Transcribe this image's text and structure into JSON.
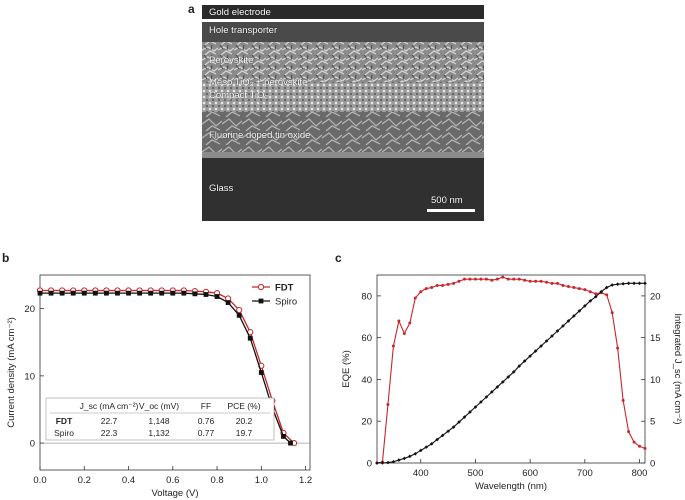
{
  "panels": {
    "a": "a",
    "b": "b",
    "c": "c"
  },
  "sem": {
    "layers": [
      "Gold electrode",
      "Hole transporter",
      "Perovskite",
      "Meso TiO₂ + perovskite",
      "Compact TiO₂",
      "Fluorine doped tin oxide",
      "Glass"
    ],
    "scale_bar": "500 nm"
  },
  "chart_data": [
    {
      "type": "line",
      "panel": "b",
      "xlabel": "Voltage (V)",
      "ylabel": "Current density (mA cm⁻²)",
      "xlim": [
        0.0,
        1.22
      ],
      "ylim": [
        -4,
        25
      ],
      "xticks": [
        "0.0",
        "0.2",
        "0.4",
        "0.6",
        "0.8",
        "1.0",
        "1.2"
      ],
      "yticks": [
        "0",
        "10",
        "20"
      ],
      "legend": "top-right",
      "series": [
        {
          "name": "FDT",
          "color": "#c8262c",
          "marker": "open-circle",
          "x": [
            0.0,
            0.05,
            0.1,
            0.15,
            0.2,
            0.25,
            0.3,
            0.35,
            0.4,
            0.45,
            0.5,
            0.55,
            0.6,
            0.65,
            0.7,
            0.75,
            0.8,
            0.85,
            0.9,
            0.95,
            1.0,
            1.05,
            1.1,
            1.148
          ],
          "y": [
            22.7,
            22.7,
            22.7,
            22.7,
            22.7,
            22.7,
            22.7,
            22.7,
            22.7,
            22.7,
            22.7,
            22.7,
            22.7,
            22.7,
            22.6,
            22.5,
            22.3,
            21.5,
            19.8,
            16.5,
            11.5,
            6.3,
            1.5,
            0
          ]
        },
        {
          "name": "Spiro",
          "color": "#111111",
          "marker": "filled-square",
          "x": [
            0.0,
            0.05,
            0.1,
            0.15,
            0.2,
            0.25,
            0.3,
            0.35,
            0.4,
            0.45,
            0.5,
            0.55,
            0.6,
            0.65,
            0.7,
            0.75,
            0.8,
            0.85,
            0.9,
            0.95,
            1.0,
            1.05,
            1.1,
            1.132
          ],
          "y": [
            22.3,
            22.3,
            22.3,
            22.3,
            22.3,
            22.3,
            22.3,
            22.3,
            22.3,
            22.3,
            22.3,
            22.3,
            22.3,
            22.3,
            22.2,
            22.1,
            21.8,
            20.9,
            19.0,
            15.6,
            10.5,
            5.2,
            1.0,
            0
          ]
        }
      ],
      "table": {
        "header": [
          "",
          "J_sc (mA cm⁻²)",
          "V_oc (mV)",
          "FF",
          "PCE (%)"
        ],
        "rows": [
          [
            "FDT",
            "22.7",
            "1,148",
            "0.76",
            "20.2"
          ],
          [
            "Spiro",
            "22.3",
            "1,132",
            "0.77",
            "19.7"
          ]
        ]
      }
    },
    {
      "type": "line",
      "panel": "c",
      "xlabel": "Wavelength (nm)",
      "ylabel": "EQE (%)",
      "y2label": "Integrated J_sc (mA cm⁻²)",
      "xlim": [
        320,
        810
      ],
      "ylim": [
        0,
        90
      ],
      "y2lim": [
        0,
        22.5
      ],
      "xticks": [
        "400",
        "500",
        "600",
        "700",
        "800"
      ],
      "yticks": [
        "0",
        "20",
        "40",
        "60",
        "80"
      ],
      "y2ticks": [
        "0",
        "5",
        "10",
        "15",
        "20"
      ],
      "series": [
        {
          "name": "EQE",
          "axis": "left",
          "color": "#c8262c",
          "x": [
            320,
            330,
            340,
            350,
            360,
            370,
            380,
            390,
            400,
            410,
            420,
            430,
            440,
            450,
            460,
            470,
            480,
            490,
            500,
            510,
            520,
            530,
            540,
            550,
            560,
            570,
            580,
            590,
            600,
            610,
            620,
            630,
            640,
            650,
            660,
            670,
            680,
            690,
            700,
            710,
            720,
            730,
            740,
            750,
            760,
            770,
            780,
            790,
            800,
            810
          ],
          "y": [
            0,
            0.5,
            28,
            56,
            68,
            62,
            67,
            79,
            82,
            83.5,
            84,
            85,
            85,
            85.5,
            86,
            87,
            88,
            88,
            88,
            88,
            88,
            87.5,
            88,
            89,
            88,
            88,
            88,
            87.5,
            87,
            87,
            87,
            86.5,
            86,
            86,
            85,
            84.5,
            84,
            83.5,
            83,
            82,
            81,
            81.5,
            80.5,
            72,
            55,
            30,
            15,
            10,
            8,
            7
          ]
        },
        {
          "name": "Integrated Jsc",
          "axis": "right",
          "color": "#111111",
          "x": [
            320,
            330,
            340,
            350,
            360,
            370,
            380,
            390,
            400,
            410,
            420,
            430,
            440,
            450,
            460,
            470,
            480,
            490,
            500,
            510,
            520,
            530,
            540,
            550,
            560,
            570,
            580,
            590,
            600,
            610,
            620,
            630,
            640,
            650,
            660,
            670,
            680,
            690,
            700,
            710,
            720,
            730,
            740,
            750,
            760,
            770,
            780,
            790,
            800,
            810
          ],
          "y": [
            0,
            0,
            0.05,
            0.15,
            0.35,
            0.55,
            0.8,
            1.1,
            1.5,
            1.9,
            2.3,
            2.8,
            3.3,
            3.8,
            4.3,
            4.9,
            5.5,
            6.1,
            6.7,
            7.3,
            7.9,
            8.5,
            9.1,
            9.7,
            10.3,
            10.9,
            11.6,
            12.2,
            12.8,
            13.4,
            14.0,
            14.6,
            15.2,
            15.8,
            16.4,
            17.0,
            17.6,
            18.2,
            18.8,
            19.4,
            19.9,
            20.5,
            21.0,
            21.3,
            21.4,
            21.45,
            21.5,
            21.5,
            21.5,
            21.5
          ]
        }
      ]
    }
  ]
}
